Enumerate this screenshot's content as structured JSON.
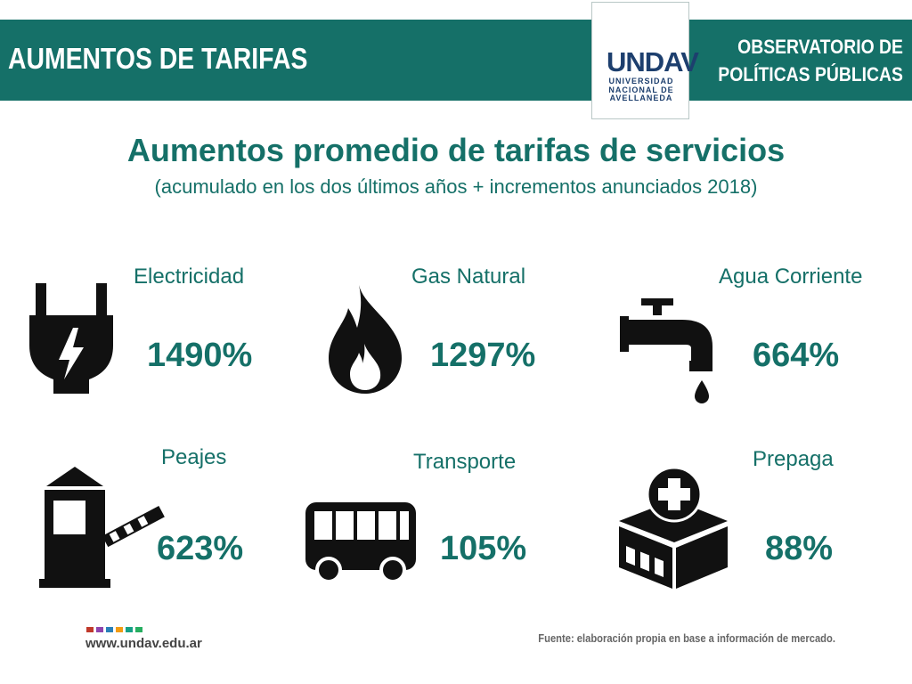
{
  "header": {
    "title": "AUMENTOS DE TARIFAS",
    "org_line1": "OBSERVATORIO DE",
    "org_line2": "POLÍTICAS PÚBLICAS"
  },
  "logo": {
    "mark": "UNDAV",
    "line1": "UNIVERSIDAD",
    "line2": "NACIONAL DE",
    "line3": "AVELLANEDA"
  },
  "main": {
    "title": "Aumentos promedio de tarifas de servicios",
    "subtitle": "(acumulado en los dos últimos años + incrementos anunciados 2018)"
  },
  "services": [
    {
      "label": "Electricidad",
      "value": "1490%",
      "icon": "power-plug-icon"
    },
    {
      "label": "Gas Natural",
      "value": "1297%",
      "icon": "flame-icon"
    },
    {
      "label": "Agua Corriente",
      "value": "664%",
      "icon": "water-faucet-icon"
    },
    {
      "label": "Peajes",
      "value": "623%",
      "icon": "toll-booth-icon"
    },
    {
      "label": "Transporte",
      "value": "105%",
      "icon": "bus-icon"
    },
    {
      "label": "Prepaga",
      "value": "88%",
      "icon": "hospital-icon"
    }
  ],
  "footer": {
    "url": "www.undav.edu.ar",
    "source": "Fuente: elaboración propia en base a información de mercado.",
    "dot_colors": [
      "#c0392b",
      "#8e44ad",
      "#2980b9",
      "#f39c12",
      "#16a085",
      "#27ae60"
    ]
  },
  "colors": {
    "accent": "#157068",
    "logo": "#1d3f6e",
    "icon": "#111111"
  }
}
